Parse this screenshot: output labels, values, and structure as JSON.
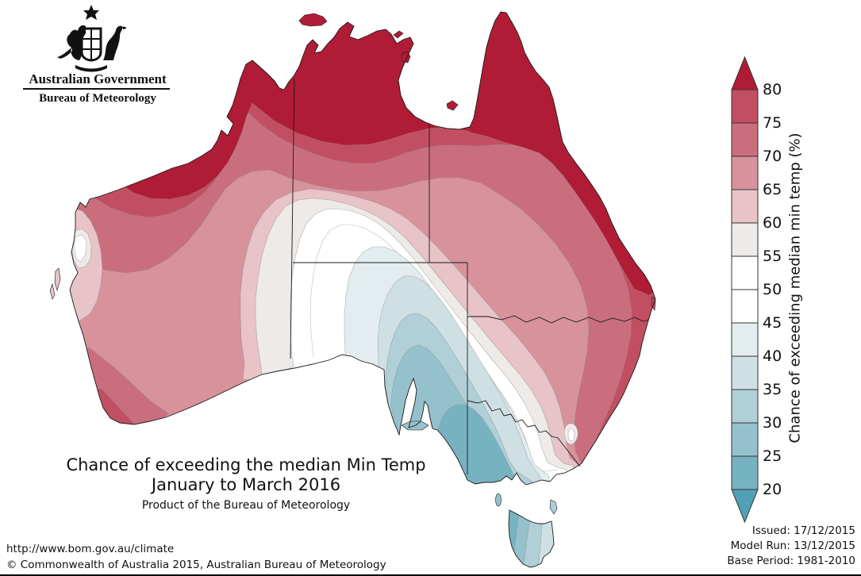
{
  "logo": {
    "line1": "Australian Government",
    "line2": "Bureau of Meteorology"
  },
  "title": {
    "line1": "Chance of exceeding the median Min Temp",
    "line2": "January to March 2016",
    "line3": "Product of the Bureau of Meteorology"
  },
  "footer": {
    "url": "http://www.bom.gov.au/climate",
    "copyright": "© Commonwealth of Australia 2015, Australian Bureau of Meteorology"
  },
  "issued": {
    "issued": "Issued: 17/12/2015",
    "model_run": "Model Run: 13/12/2015",
    "base_period": "Base Period: 1981-2010"
  },
  "colorbar": {
    "axis_label": "Chance of exceeding median min temp (%)",
    "tick_labels": [
      "80",
      "75",
      "70",
      "65",
      "60",
      "55",
      "50",
      "45",
      "40",
      "35",
      "30",
      "25",
      "20"
    ],
    "segment_colors": [
      "#c24f61",
      "#ca6e7e",
      "#d7929c",
      "#e8c3c7",
      "#edeae8",
      "#ffffff",
      "#ffffff",
      "#e3edef",
      "#cfe0e4",
      "#b0cfd7",
      "#94c1cc",
      "#77b2c1"
    ],
    "arrow_top_color": "#b01c35",
    "arrow_bottom_color": "#51a1b4"
  },
  "bands": {
    "b80": "#b01c35",
    "b75_80": "#c24f61",
    "b70_75": "#ca6e7e",
    "b65_70": "#d7929c",
    "b60_65": "#e8c3c7",
    "b55_60": "#edeae8",
    "white": "#ffffff",
    "b40_45": "#e3edef",
    "b35_40": "#cfe0e4",
    "b30_35": "#b0cfd7",
    "b25_30": "#94c1cc",
    "b20_25": "#77b2c1"
  },
  "chart_data": {
    "type": "heatmap",
    "subtype": "filled_contour_map",
    "title": "Chance of exceeding the median Min Temp",
    "subtitle": "January to March 2016",
    "variable": "Chance of exceeding median min temp (%)",
    "levels": [
      20,
      25,
      30,
      35,
      40,
      45,
      50,
      55,
      60,
      65,
      70,
      75,
      80
    ],
    "level_colors": [
      "#51a1b4",
      "#77b2c1",
      "#94c1cc",
      "#b0cfd7",
      "#cfe0e4",
      "#e3edef",
      "#ffffff",
      "#ffffff",
      "#edeae8",
      "#e8c3c7",
      "#d7929c",
      "#ca6e7e",
      "#c24f61",
      "#b01c35"
    ],
    "legend_position": "right",
    "base_period": "1981-2010",
    "model_run": "13/12/2015",
    "issued": "17/12/2015",
    "regions": [
      {
        "area": "Kimberley, Top End, Arnhem Land, Gulf country, Cape York and NE Queensland coast",
        "value_percent": ">80"
      },
      {
        "area": "Pilbara coastal tongue (NW WA)",
        "value_percent": ">80"
      },
      {
        "area": "Inland northern Australia band",
        "value_percent": "70-80"
      },
      {
        "area": "Eastern NSW / SE Queensland coast strip",
        "value_percent": "70-80"
      },
      {
        "area": "Central Western Australia interior",
        "value_percent": "65-70"
      },
      {
        "area": "Southwest WA corner (Cape Leeuwin)",
        "value_percent": "70-80"
      },
      {
        "area": "WA west coast near Shark Bay",
        "value_percent": "55-65"
      },
      {
        "area": "Central Australia through western NSW",
        "value_percent": "45-55"
      },
      {
        "area": "Northern South Australia fringe",
        "value_percent": "40-45"
      },
      {
        "area": "Southern South Australia (Eyre/Yorke Peninsulas)",
        "value_percent": "25-35"
      },
      {
        "area": "Southeast SA coast and southwest Victoria",
        "value_percent": "20-25"
      },
      {
        "area": "Snowy Mountains pocket (SE NSW)",
        "value_percent": "50-60"
      },
      {
        "area": "Tasmania (west to east)",
        "value_percent": "20-40"
      }
    ]
  }
}
